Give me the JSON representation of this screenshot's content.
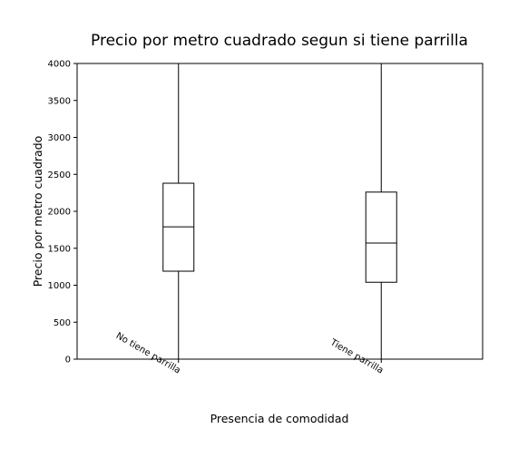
{
  "chart_data": {
    "type": "box",
    "title": "Precio por metro cuadrado segun si tiene parrilla",
    "xlabel": "Presencia de comodidad",
    "ylabel": "Precio por metro cuadrado",
    "ylim": [
      0,
      4000
    ],
    "yticks": [
      0,
      500,
      1000,
      1500,
      2000,
      2500,
      3000,
      3500,
      4000
    ],
    "grid": false,
    "categories": [
      "No tiene parrilla",
      "Tiene parrilla"
    ],
    "boxes": [
      {
        "category": "No tiene parrilla",
        "whisker_low": 0,
        "q1": 1190,
        "median": 1790,
        "q3": 2380,
        "whisker_high": 4000
      },
      {
        "category": "Tiene parrilla",
        "whisker_low": 0,
        "q1": 1040,
        "median": 1570,
        "q3": 2260,
        "whisker_high": 4000
      }
    ],
    "colors": {
      "box_edge": "#000000",
      "median": "#000000",
      "whisker": "#000000"
    }
  }
}
